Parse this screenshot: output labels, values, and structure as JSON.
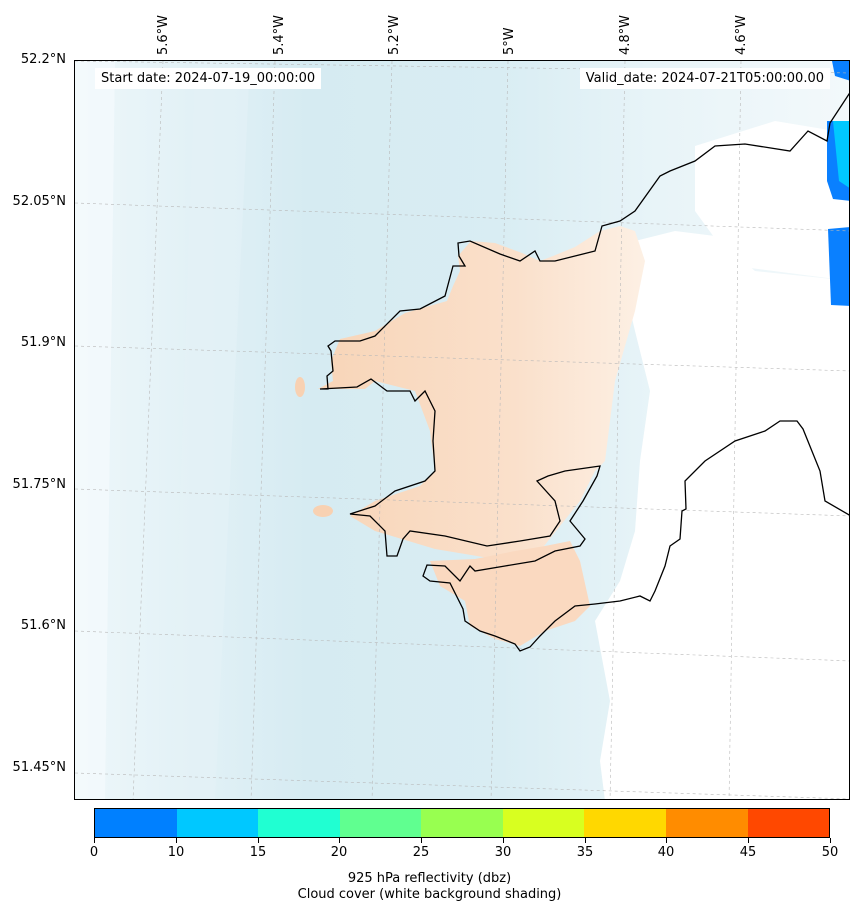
{
  "map": {
    "start_label": "Start date: 2024-07-19_00:00:00",
    "valid_label": "Valid_date: 2024-07-21T05:00:00.00",
    "lat_labels": [
      "52.2°N",
      "52.05°N",
      "51.9°N",
      "51.75°N",
      "51.6°N",
      "51.45°N"
    ],
    "lon_labels": [
      "5.6°W",
      "5.4°W",
      "5.2°W",
      "5°W",
      "4.8°W",
      "4.6°W"
    ],
    "colors": {
      "sea_shading": "#d8edf3",
      "land_reflectivity": "#f8d7bd",
      "cloud_free": "#ffffff",
      "coastline": "#000000",
      "high_reflectivity": "#0a80ff"
    }
  },
  "colorbar": {
    "ticks": [
      "0",
      "10",
      "15",
      "20",
      "25",
      "30",
      "35",
      "40",
      "45",
      "50"
    ],
    "colors": [
      "#0080ff",
      "#00c8ff",
      "#20ffd2",
      "#60ff90",
      "#98ff50",
      "#d8ff20",
      "#ffd800",
      "#ff8c00",
      "#ff4800"
    ],
    "title_line1": "925 hPa reflectivity (dbz)",
    "title_line2": "Cloud cover (white background shading)"
  }
}
